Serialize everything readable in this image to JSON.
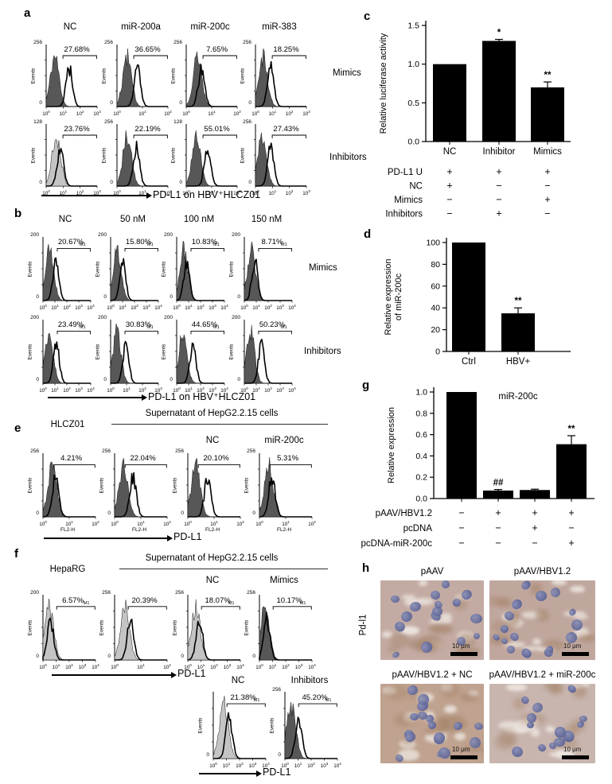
{
  "colors": {
    "bar_fill": "#000000",
    "hist_dark": "#575757",
    "hist_light": "#c4c4c4",
    "hist_outline": "#000000",
    "tissue_bases": [
      "#c3aba3",
      "#c0a79e",
      "#bfa28f",
      "#c8b5ae"
    ],
    "nucleus_inner": "#8a8fb6",
    "nucleus_outer": "#5d6496",
    "brown_patch": "#a5846a",
    "light_patch": "#ece5df"
  },
  "common": {
    "events_label": "Events",
    "zero_label": "0",
    "m1_label": "M1"
  },
  "panel_a": {
    "label": "a",
    "columns": [
      "NC",
      "miR-200a",
      "miR-200c",
      "miR-383"
    ],
    "row_labels": [
      "Mimics",
      "Inhibitors"
    ],
    "x_arrow_label": "PD-L1 on HBV⁺HLCZ01",
    "rows": [
      [
        {
          "pct": "27.68%",
          "ymax": "256",
          "xmax": 3,
          "light": false,
          "gray": 0.17,
          "open": 0.45
        },
        {
          "pct": "36.65%",
          "ymax": "256",
          "xmax": 2,
          "light": false,
          "gray": 0.2,
          "open": 0.4
        },
        {
          "pct": "7.65%",
          "ymax": "256",
          "xmax": 2,
          "light": false,
          "gray": 0.22,
          "open": 0.3
        },
        {
          "pct": "18.25%",
          "ymax": "256",
          "xmax": 3,
          "light": false,
          "gray": 0.15,
          "open": 0.3
        }
      ],
      [
        {
          "pct": "23.76%",
          "ymax": "128",
          "xmax": 3,
          "light": true,
          "gray": 0.2,
          "open": 0.28
        },
        {
          "pct": "22.19%",
          "ymax": "256",
          "xmax": 2,
          "light": false,
          "gray": 0.2,
          "open": 0.38
        },
        {
          "pct": "55.01%",
          "ymax": "128",
          "xmax": 2,
          "light": false,
          "gray": 0.2,
          "open": 0.42
        },
        {
          "pct": "27.43%",
          "ymax": "256",
          "xmax": 3,
          "light": false,
          "gray": 0.13,
          "open": 0.3
        }
      ]
    ]
  },
  "panel_b": {
    "label": "b",
    "columns": [
      "NC",
      "50 nM",
      "100 nM",
      "150 nM"
    ],
    "row_labels": [
      "Mimics",
      "Inhibitors"
    ],
    "x_arrow_label": "PD-L1 on HBV⁺HLCZ01",
    "rows": [
      [
        {
          "pct": "20.67%",
          "ymax": "200",
          "xmax": 4,
          "m1": true,
          "light": false,
          "gray": 0.14,
          "open": 0.27
        },
        {
          "pct": "15.80%",
          "ymax": "200",
          "xmax": 4,
          "m1": true,
          "light": false,
          "gray": 0.14,
          "open": 0.25
        },
        {
          "pct": "10.83%",
          "ymax": "200",
          "xmax": 4,
          "m1": true,
          "light": false,
          "gray": 0.15,
          "open": 0.21
        },
        {
          "pct": "8.71%",
          "ymax": "200",
          "xmax": 4,
          "m1": true,
          "light": false,
          "gray": 0.15,
          "open": 0.22
        }
      ],
      [
        {
          "pct": "23.49%",
          "ymax": "200",
          "xmax": 4,
          "m1": true,
          "light": false,
          "gray": 0.13,
          "open": 0.28
        },
        {
          "pct": "30.83%",
          "ymax": "200",
          "xmax": 3,
          "m1": true,
          "light": false,
          "gray": 0.13,
          "open": 0.32
        },
        {
          "pct": "44.65%",
          "ymax": "200",
          "xmax": 4,
          "m1": true,
          "light": false,
          "gray": 0.13,
          "open": 0.34
        },
        {
          "pct": "50.23%",
          "ymax": "200",
          "xmax": 4,
          "m1": true,
          "light": false,
          "gray": 0.13,
          "open": 0.36
        }
      ]
    ]
  },
  "panel_e": {
    "label": "e",
    "first_header": "HLCZ01",
    "span_header": "Supernatant of HepG2.2.15 cells",
    "sub_headers": [
      "NC",
      "miR-200c"
    ],
    "x_axis_label": "FL2-H",
    "x_arrow_label": "PD-L1",
    "hists": [
      {
        "pct": "4.21%",
        "ymax": "256",
        "xmax": 2,
        "light": false,
        "gray": 0.18,
        "open": 0.24
      },
      {
        "pct": "22.04%",
        "ymax": "256",
        "xmax": 2,
        "light": false,
        "gray": 0.17,
        "open": 0.35
      },
      {
        "pct": "20.10%",
        "ymax": "256",
        "xmax": 2,
        "light": false,
        "gray": 0.15,
        "open": 0.38
      },
      {
        "pct": "5.31%",
        "ymax": "256",
        "xmax": 2,
        "light": false,
        "gray": 0.18,
        "open": 0.24
      }
    ]
  },
  "panel_f": {
    "label": "f",
    "first_header": "HepaRG",
    "span_header": "Supernatant of HepG2.2.15 cells",
    "sub_headers": [
      "NC",
      "Mimics"
    ],
    "row2_headers": [
      "NC",
      "Inhibitors"
    ],
    "x_arrow_label": "PD-L1",
    "row1": [
      {
        "pct": "6.57%",
        "ymax": "200",
        "xmax": 4,
        "m1": true,
        "light": true,
        "gray": 0.12,
        "open": 0.14
      },
      {
        "pct": "20.39%",
        "ymax": "256",
        "xmax": 2,
        "light": true,
        "gray": 0.2,
        "open": 0.3
      },
      {
        "pct": "18.07%",
        "ymax": "256",
        "xmax": 4,
        "m1": true,
        "light": true,
        "gray": 0.15,
        "open": 0.22
      },
      {
        "pct": "10.17%",
        "ymax": "256",
        "xmax": 4,
        "m1": true,
        "light": false,
        "gray": 0.1,
        "open": 0.14
      }
    ],
    "row2": [
      {
        "pct": "21.38%",
        "ymax": "",
        "xmax": 4,
        "m1": true,
        "light": true,
        "gray": 0.2,
        "open": 0.3
      },
      {
        "pct": "45.20%",
        "ymax": "256",
        "xmax": 4,
        "m1": true,
        "light": false,
        "gray": 0.12,
        "open": 0.26
      }
    ]
  },
  "panel_h": {
    "label": "h",
    "side_label": "Pd-l1",
    "tile_titles": [
      "pAAV",
      "pAAV/HBV1.2",
      "pAAV/HBV1.2 + NC",
      "pAAV/HBV1.2 + miR-200c"
    ],
    "scale_label": "10 μm"
  },
  "chart_data": [
    {
      "type": "bar",
      "panel_label": "c",
      "title": "",
      "ylabel": "Relative luciferase activity",
      "ylim": [
        0,
        1.5
      ],
      "yticks": [
        "0.0",
        "0.5",
        "1.0",
        "1.5"
      ],
      "categories": [
        "NC",
        "Inhibitor",
        "Mimics"
      ],
      "values": [
        1.0,
        1.3,
        0.7
      ],
      "errors": [
        0,
        0.02,
        0.07
      ],
      "sig": [
        "",
        "*",
        "**"
      ],
      "sign_table": [
        {
          "label": "PD-L1 U",
          "signs": [
            "+",
            "+",
            "+"
          ]
        },
        {
          "label": "NC",
          "signs": [
            "+",
            "−",
            "−"
          ]
        },
        {
          "label": "Mimics",
          "signs": [
            "−",
            "−",
            "+"
          ]
        },
        {
          "label": "Inhibitors",
          "signs": [
            "−",
            "+",
            "−"
          ]
        }
      ]
    },
    {
      "type": "bar",
      "panel_label": "d",
      "title": "",
      "ylabel_lines": [
        "Relative expression",
        "of miR-200c"
      ],
      "ylim": [
        0,
        100
      ],
      "yticks": [
        "0",
        "20",
        "40",
        "60",
        "80",
        "100"
      ],
      "categories": [
        "Ctrl",
        "HBV+"
      ],
      "values": [
        100,
        35
      ],
      "errors": [
        0,
        5
      ],
      "sig": [
        "",
        "**"
      ],
      "sign_table": []
    },
    {
      "type": "bar",
      "panel_label": "g",
      "title": "miR-200c",
      "ylabel": "Relative expression",
      "ylim": [
        0,
        1.0
      ],
      "yticks": [
        "0.0",
        "0.2",
        "0.4",
        "0.6",
        "0.8",
        "1.0"
      ],
      "categories": [
        "",
        "",
        "",
        ""
      ],
      "values": [
        1.0,
        0.075,
        0.08,
        0.51
      ],
      "errors": [
        0,
        0.01,
        0.008,
        0.08
      ],
      "sig": [
        "",
        "##",
        "",
        "**"
      ],
      "sign_table": [
        {
          "label": "pAAV/HBV1.2",
          "signs": [
            "−",
            "+",
            "+",
            "+"
          ]
        },
        {
          "label": "pcDNA",
          "signs": [
            "−",
            "−",
            "+",
            "−"
          ]
        },
        {
          "label": "pcDNA-miR-200c",
          "signs": [
            "−",
            "−",
            "−",
            "+"
          ]
        }
      ]
    }
  ]
}
